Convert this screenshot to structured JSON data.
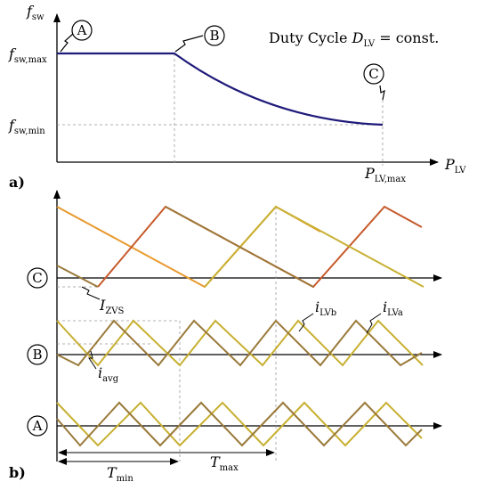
{
  "panel_a": {
    "panel_label": "a)",
    "y_axis": {
      "symbol": "f",
      "sub": "sw"
    },
    "x_axis": {
      "symbol": "P",
      "sub": "LV"
    },
    "y_ticks": {
      "max": {
        "symbol": "f",
        "sub": "sw,max"
      },
      "min": {
        "symbol": "f",
        "sub": "sw,min"
      }
    },
    "x_tick": {
      "symbol": "P",
      "sub": "LV,max"
    },
    "annotation": {
      "prefix": "Duty Cycle ",
      "symbol": "D",
      "sub": "LV",
      "suffix": " = const."
    },
    "points": [
      "A",
      "B",
      "C"
    ],
    "curve_color": "#1f1a7a"
  },
  "panel_b": {
    "panel_label": "b)",
    "rows": [
      "C",
      "B",
      "A"
    ],
    "labels": {
      "izvs": {
        "symbol": "I",
        "sub": "ZVS"
      },
      "iavg": {
        "symbol": "i",
        "sub": "avg"
      },
      "ilvb": {
        "symbol": "i",
        "sub": "LVb"
      },
      "ilva": {
        "symbol": "i",
        "sub": "LVa"
      },
      "tmin": {
        "symbol": "T",
        "sub": "min"
      },
      "tmax": {
        "symbol": "T",
        "sub": "max"
      }
    },
    "colors": {
      "orange": "#e89a2e",
      "dark_orange": "#c65a2a",
      "olive": "#c8b032",
      "brown": "#9a7a3a"
    }
  }
}
